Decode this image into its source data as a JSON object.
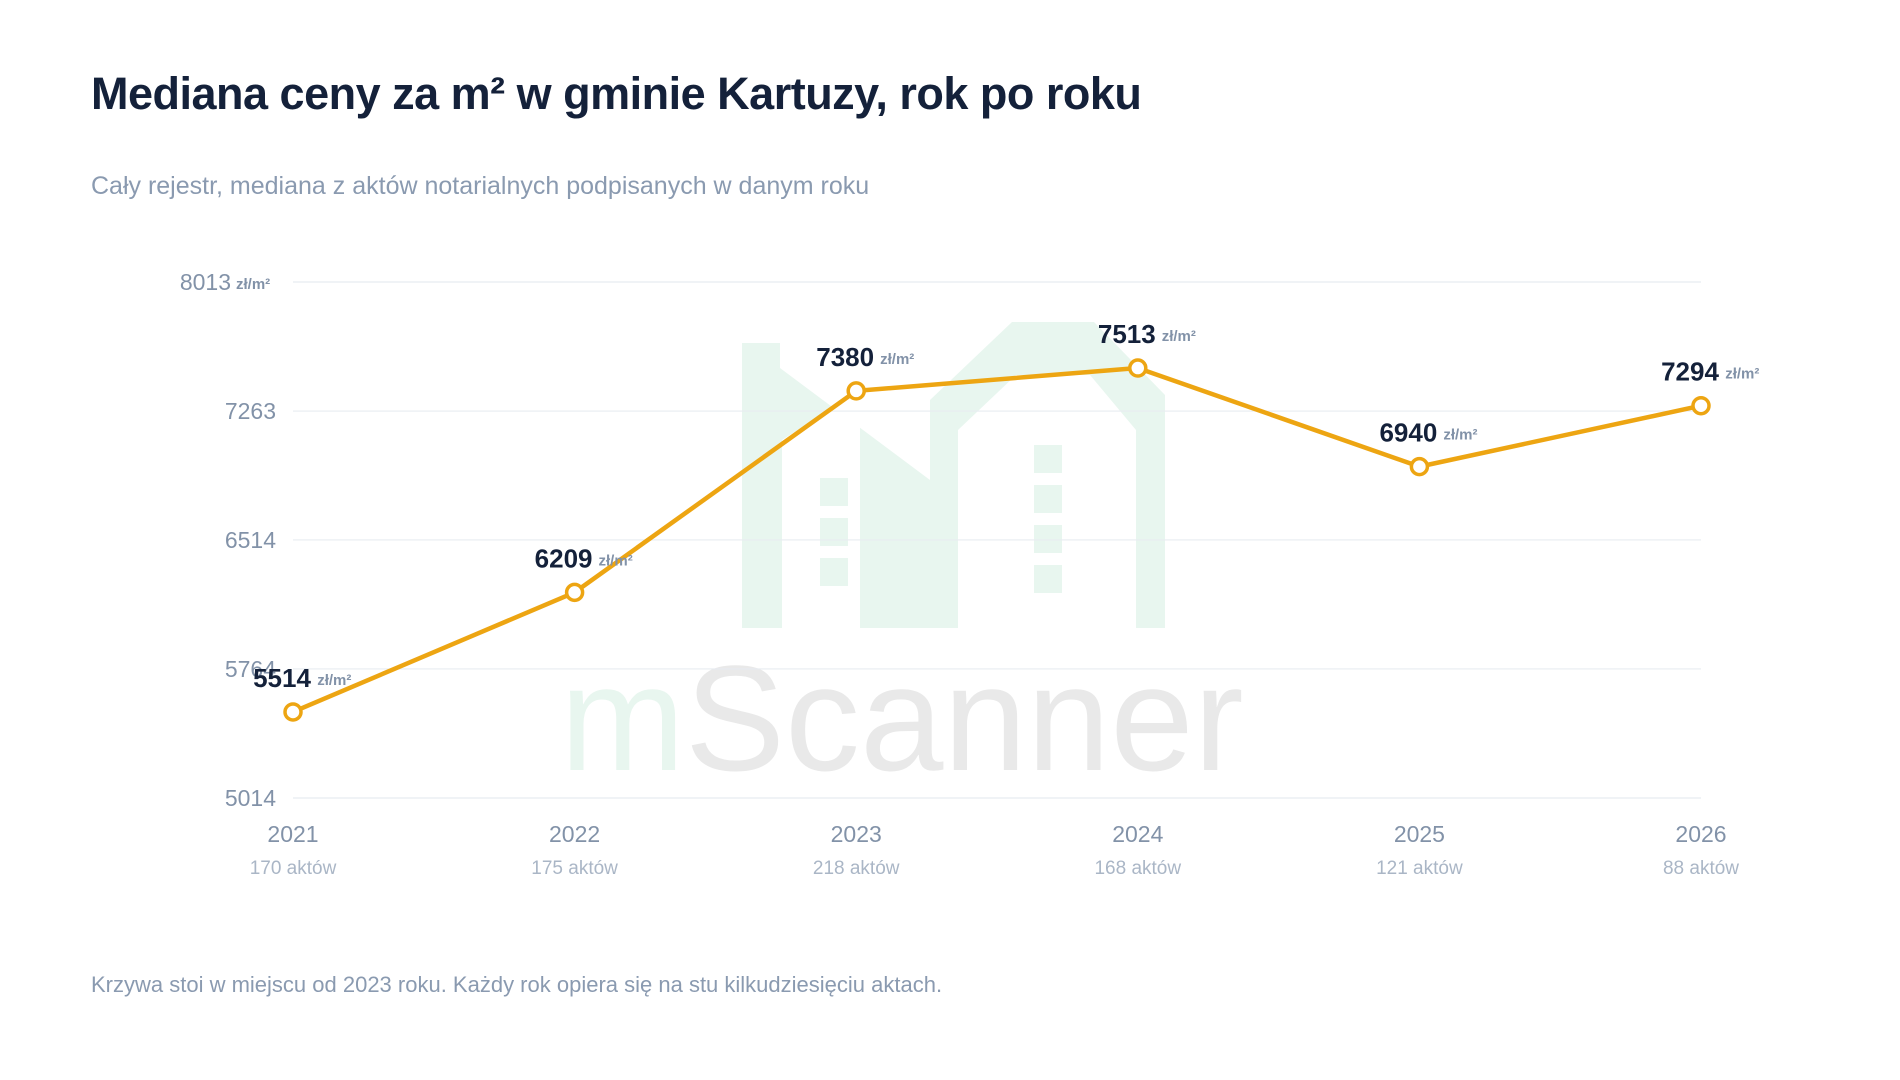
{
  "header": {
    "title": "Mediana ceny za m² w gminie Kartuzy, rok po roku",
    "subtitle": "Cały rejestr, mediana z aktów notarialnych podpisanych w danym roku"
  },
  "footer": {
    "note": "Krzywa stoi w miejscu od 2023 roku. Każdy rok opiera się na stu kilkudziesięciu aktach."
  },
  "watermark": {
    "part1": "m",
    "part2": "Scanner",
    "color_light": "#e8f6ef",
    "color_gray": "#e9e9e9"
  },
  "chart_data": {
    "type": "line",
    "x": [
      "2021",
      "2022",
      "2023",
      "2024",
      "2025",
      "2026"
    ],
    "counts": [
      "170 aktów",
      "175 aktów",
      "218 aktów",
      "168 aktów",
      "121 aktów",
      "88 aktów"
    ],
    "values": [
      5514,
      6209,
      7380,
      7513,
      6940,
      7294
    ],
    "value_labels": [
      "5514",
      "6209",
      "7380",
      "7513",
      "6940",
      "7294"
    ],
    "unit": "zł/m²",
    "y_ticks": [
      5014,
      5764,
      6514,
      7263,
      8013
    ],
    "y_tick_labels": [
      "5014",
      "5764",
      "6514",
      "7263",
      "8013"
    ],
    "ylim": [
      5014,
      8013
    ],
    "grid": true,
    "line_color": "#eda512",
    "point_fill": "#ffffff"
  }
}
